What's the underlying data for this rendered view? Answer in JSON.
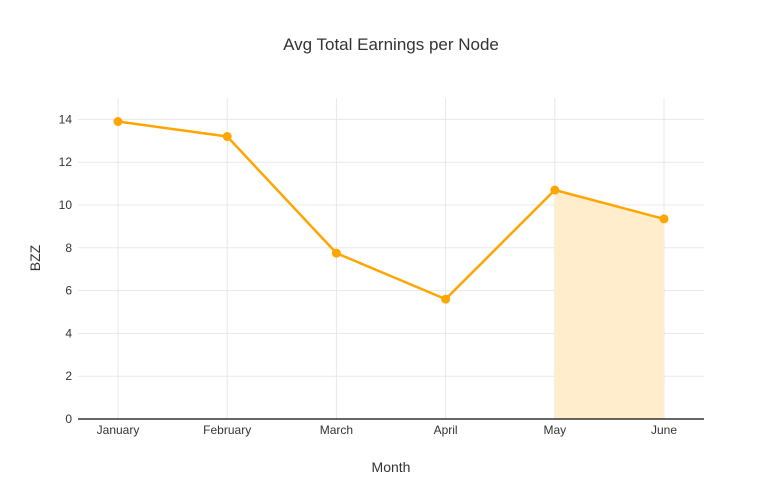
{
  "chart_data": {
    "type": "line",
    "title": "Avg Total Earnings per Node",
    "xlabel": "Month",
    "ylabel": "BZZ",
    "categories": [
      "January",
      "February",
      "March",
      "April",
      "May",
      "June"
    ],
    "values": [
      13.9,
      13.2,
      7.75,
      5.6,
      10.7,
      9.35
    ],
    "ylim": [
      0,
      15
    ],
    "yticks": [
      0,
      2,
      4,
      6,
      8,
      10,
      12,
      14
    ],
    "grid": true,
    "legend": "none",
    "shaded_region": {
      "from": "May",
      "to": "June"
    },
    "colors": {
      "line": "#ffa500",
      "marker": "#ffa500",
      "area_fill": "#ffedcc",
      "gridline": "#e8e8e8",
      "axis_line": "#333333",
      "text": "#333333"
    }
  }
}
